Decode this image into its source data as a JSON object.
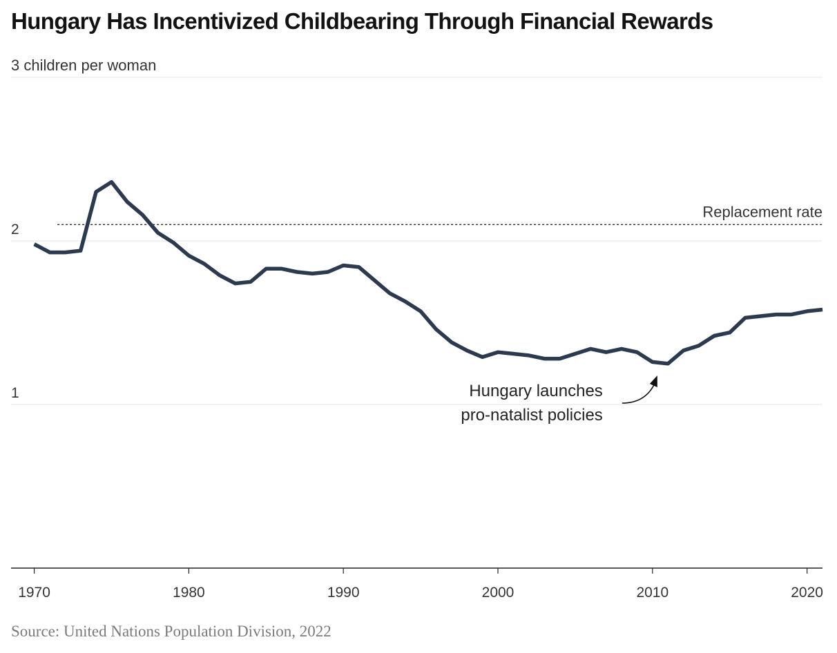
{
  "chart_data": {
    "type": "line",
    "title": "Hungary Has Incentivized Childbearing Through Financial Rewards",
    "ylabel": "children per woman",
    "ylim": [
      0,
      3
    ],
    "xlim": [
      1968.5,
      2021
    ],
    "y_ticks": [
      {
        "value": 3,
        "label": "3 children per woman"
      },
      {
        "value": 2,
        "label": "2"
      },
      {
        "value": 1,
        "label": "1"
      }
    ],
    "x_ticks": [
      1970,
      1980,
      1990,
      2000,
      2010,
      2020
    ],
    "series": [
      {
        "color": "#2b3a4e",
        "x": [
          1970,
          1971,
          1972,
          1973,
          1974,
          1975,
          1976,
          1977,
          1978,
          1979,
          1980,
          1981,
          1982,
          1983,
          1984,
          1985,
          1986,
          1987,
          1988,
          1989,
          1990,
          1991,
          1992,
          1993,
          1994,
          1995,
          1996,
          1997,
          1998,
          1999,
          2000,
          2001,
          2002,
          2003,
          2004,
          2005,
          2006,
          2007,
          2008,
          2009,
          2010,
          2011,
          2012,
          2013,
          2014,
          2015,
          2016,
          2017,
          2018,
          2019,
          2020,
          2021
        ],
        "values": [
          1.98,
          1.93,
          1.93,
          1.94,
          2.3,
          2.36,
          2.24,
          2.16,
          2.05,
          1.99,
          1.91,
          1.86,
          1.79,
          1.74,
          1.75,
          1.83,
          1.83,
          1.81,
          1.8,
          1.81,
          1.85,
          1.84,
          1.76,
          1.68,
          1.63,
          1.57,
          1.46,
          1.38,
          1.33,
          1.29,
          1.32,
          1.31,
          1.3,
          1.28,
          1.28,
          1.31,
          1.34,
          1.32,
          1.34,
          1.32,
          1.26,
          1.25,
          1.33,
          1.36,
          1.42,
          1.44,
          1.53,
          1.54,
          1.55,
          1.55,
          1.57,
          1.58
        ]
      }
    ],
    "reference_line": {
      "label": "Replacement rate",
      "value": 2.1,
      "style": "dotted",
      "x_start": 1971.5
    },
    "annotation": {
      "lines": [
        "Hungary launches",
        "pro-natalist policies"
      ],
      "x": 2010
    }
  },
  "source": "Source: United Nations Population Division, 2022"
}
